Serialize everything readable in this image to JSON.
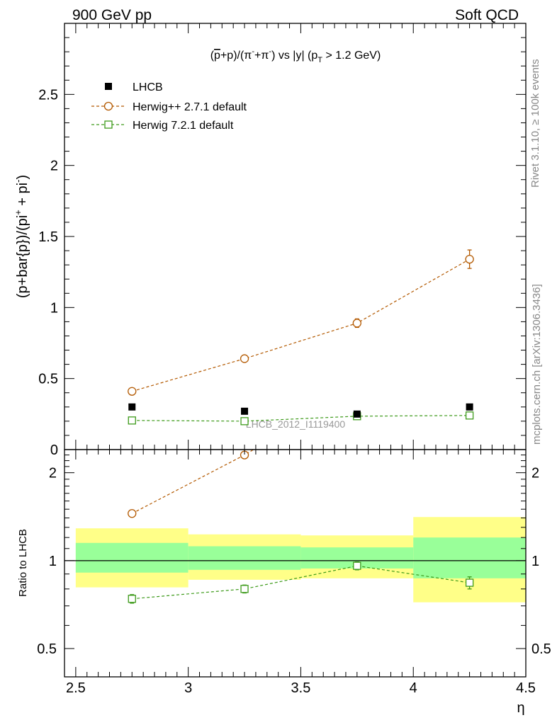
{
  "header": {
    "left": "900 GeV pp",
    "right": "Soft QCD"
  },
  "side_labels": {
    "rivet": "Rivet 3.1.10, ≥ 100k events",
    "mcplots": "mcplots.cern.ch [arXiv:1306.3436]"
  },
  "watermark": "LHCB_2012_I1119400",
  "colors": {
    "lhcb": "#000000",
    "herwigpp": "#b35900",
    "herwig7": "#3d9a1a",
    "band_inner": "#99ff99",
    "band_outer": "#ffff88"
  },
  "chart_data": [
    {
      "type": "scatter",
      "title": "(p̄+p)/(π⁻+π⁺) vs |y| (p_T > 1.2 GeV)",
      "title_parts": {
        "a": "(",
        "pbar": "p",
        "b": "+p)/(π",
        "sup1": "-",
        "c": "+π",
        "sup2": "-",
        "d": ") vs |y| (p",
        "sub": "T",
        "e": " > 1.2 GeV)"
      },
      "ylabel_parts": {
        "a": "(p+bar{p})/(pi",
        "sup1": "+",
        "b": " + pi",
        "sup2": "-",
        "c": ")"
      },
      "ylim": [
        0,
        3.0
      ],
      "yticks": [
        0,
        0.5,
        1,
        1.5,
        2,
        2.5
      ],
      "ytick_labels": [
        "0",
        "0.5",
        "1",
        "1.5",
        "2",
        "2.5"
      ],
      "xlim": [
        2.45,
        4.5
      ],
      "legend": {
        "position": "top-left"
      },
      "series": [
        {
          "name": "LHCB",
          "marker": "filled-square",
          "x": [
            2.75,
            3.25,
            3.75,
            4.25
          ],
          "y": [
            0.3,
            0.27,
            0.25,
            0.3
          ],
          "err": [
            0.005,
            0.005,
            0.005,
            0.005
          ]
        },
        {
          "name": "Herwig++ 2.7.1 default",
          "marker": "open-circle",
          "x": [
            2.75,
            3.25,
            3.75,
            4.25
          ],
          "y": [
            0.41,
            0.64,
            0.89,
            1.34
          ],
          "err": [
            0.01,
            0.01,
            0.03,
            0.065
          ]
        },
        {
          "name": "Herwig 7.2.1 default",
          "marker": "open-square",
          "x": [
            2.75,
            3.25,
            3.75,
            4.25
          ],
          "y": [
            0.205,
            0.2,
            0.235,
            0.24
          ],
          "err": [
            0.005,
            0.005,
            0.005,
            0.005
          ]
        }
      ]
    },
    {
      "type": "scatter",
      "ylabel": "Ratio to LHCB",
      "xlabel": "η",
      "scale": "log",
      "ylim": [
        0.4,
        2.4
      ],
      "yticks": [
        0.5,
        1,
        2
      ],
      "ytick_labels": [
        "0.5",
        "1",
        "2"
      ],
      "xlim": [
        2.45,
        4.5
      ],
      "xticks": [
        2.5,
        3,
        3.5,
        4,
        4.5
      ],
      "xtick_labels": [
        "2.5",
        "3",
        "3.5",
        "4",
        "4.5"
      ],
      "bands": [
        {
          "x": [
            2.5,
            3.0
          ],
          "inner": [
            0.91,
            1.15
          ],
          "outer": [
            0.81,
            1.29
          ]
        },
        {
          "x": [
            3.0,
            3.5
          ],
          "inner": [
            0.93,
            1.12
          ],
          "outer": [
            0.86,
            1.23
          ]
        },
        {
          "x": [
            3.5,
            4.0
          ],
          "inner": [
            0.94,
            1.11
          ],
          "outer": [
            0.87,
            1.22
          ]
        },
        {
          "x": [
            4.0,
            4.5
          ],
          "inner": [
            0.87,
            1.2
          ],
          "outer": [
            0.72,
            1.41
          ]
        }
      ],
      "series": [
        {
          "name": "Herwig++ 2.7.1 default",
          "marker": "open-circle",
          "x": [
            2.75,
            3.25
          ],
          "y": [
            1.45,
            2.3
          ],
          "err": [
            0.04,
            0.06
          ],
          "continues_to": [
            3.29,
            2.4
          ]
        },
        {
          "name": "Herwig 7.2.1 default",
          "marker": "open-square",
          "x": [
            2.75,
            3.25,
            3.75,
            4.25
          ],
          "y": [
            0.74,
            0.8,
            0.96,
            0.84
          ],
          "err": [
            0.025,
            0.025,
            0.03,
            0.04
          ]
        }
      ]
    }
  ]
}
